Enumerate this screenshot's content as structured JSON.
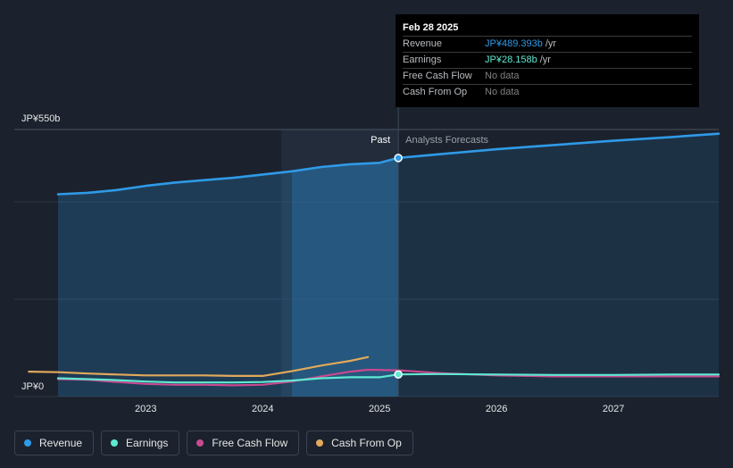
{
  "tooltip": {
    "date": "Feb 28 2025",
    "rows": [
      {
        "label": "Revenue",
        "value": "JP¥489.393b",
        "unit": "/yr",
        "color": "#2f9ae7"
      },
      {
        "label": "Earnings",
        "value": "JP¥28.158b",
        "unit": "/yr",
        "color": "#5ee9d2"
      },
      {
        "label": "Free Cash Flow",
        "value": "No data",
        "unit": "",
        "color": "#7f8184"
      },
      {
        "label": "Cash From Op",
        "value": "No data",
        "unit": "",
        "color": "#7f8184"
      }
    ]
  },
  "legend": [
    {
      "label": "Revenue",
      "color": "#2f9ae7"
    },
    {
      "label": "Earnings",
      "color": "#5ee9d2"
    },
    {
      "label": "Free Cash Flow",
      "color": "#c74a8f"
    },
    {
      "label": "Cash From Op",
      "color": "#e2a95a"
    }
  ],
  "chart_data": {
    "type": "line",
    "y_ticks": [
      "JP¥550b",
      "JP¥0"
    ],
    "ylim": [
      0,
      550
    ],
    "xlim": [
      2022.12,
      2027.9
    ],
    "x_ticks": [
      "2023",
      "2024",
      "2025",
      "2026",
      "2027"
    ],
    "x_tick_values": [
      2023,
      2024,
      2025,
      2026,
      2027
    ],
    "highlight_start": 2024.16,
    "divider": 2025.16,
    "past_label": "Past",
    "forecast_label": "Analysts Forecasts",
    "series": [
      {
        "name": "Revenue",
        "color": "#2f9ae7",
        "area": true,
        "points": [
          [
            2022.25,
            412
          ],
          [
            2022.5,
            415
          ],
          [
            2022.75,
            421
          ],
          [
            2023.0,
            430
          ],
          [
            2023.25,
            437
          ],
          [
            2023.5,
            442
          ],
          [
            2023.75,
            447
          ],
          [
            2024.0,
            454
          ],
          [
            2024.25,
            461
          ],
          [
            2024.5,
            470
          ],
          [
            2024.75,
            476
          ],
          [
            2025.0,
            479
          ],
          [
            2025.16,
            489.393
          ],
          [
            2025.5,
            497
          ],
          [
            2026.0,
            508
          ],
          [
            2026.5,
            517
          ],
          [
            2027.0,
            526
          ],
          [
            2027.5,
            534
          ],
          [
            2027.9,
            541
          ]
        ]
      },
      {
        "name": "Earnings",
        "color": "#5ee9d2",
        "points": [
          [
            2022.25,
            20
          ],
          [
            2022.5,
            18
          ],
          [
            2022.75,
            16
          ],
          [
            2023.0,
            13
          ],
          [
            2023.25,
            11
          ],
          [
            2023.5,
            11
          ],
          [
            2023.75,
            11
          ],
          [
            2024.0,
            12
          ],
          [
            2024.25,
            15
          ],
          [
            2024.5,
            20
          ],
          [
            2024.75,
            22
          ],
          [
            2025.0,
            22
          ],
          [
            2025.16,
            28.158
          ],
          [
            2025.5,
            29
          ],
          [
            2026.0,
            28
          ],
          [
            2026.5,
            27
          ],
          [
            2027.0,
            27
          ],
          [
            2027.5,
            28
          ],
          [
            2027.9,
            28
          ]
        ]
      },
      {
        "name": "Free Cash Flow",
        "color": "#c74a8f",
        "points": [
          [
            2022.25,
            18
          ],
          [
            2022.5,
            17
          ],
          [
            2022.75,
            12
          ],
          [
            2023.0,
            8
          ],
          [
            2023.25,
            6
          ],
          [
            2023.5,
            6
          ],
          [
            2023.75,
            5
          ],
          [
            2024.0,
            6
          ],
          [
            2024.25,
            13
          ],
          [
            2024.5,
            24
          ],
          [
            2024.75,
            34
          ],
          [
            2024.9,
            38
          ],
          [
            2025.16,
            37
          ],
          [
            2025.5,
            31
          ],
          [
            2026.0,
            26
          ],
          [
            2026.5,
            24
          ],
          [
            2027.0,
            24
          ],
          [
            2027.5,
            24
          ],
          [
            2027.9,
            24
          ]
        ]
      },
      {
        "name": "Cash From Op",
        "color": "#e2a95a",
        "points": [
          [
            2022.0,
            34
          ],
          [
            2022.25,
            33
          ],
          [
            2022.5,
            30
          ],
          [
            2022.75,
            28
          ],
          [
            2023.0,
            26
          ],
          [
            2023.25,
            26
          ],
          [
            2023.5,
            26
          ],
          [
            2023.75,
            25
          ],
          [
            2024.0,
            25
          ],
          [
            2024.25,
            35
          ],
          [
            2024.5,
            47
          ],
          [
            2024.75,
            57
          ],
          [
            2024.9,
            65
          ]
        ]
      }
    ]
  }
}
